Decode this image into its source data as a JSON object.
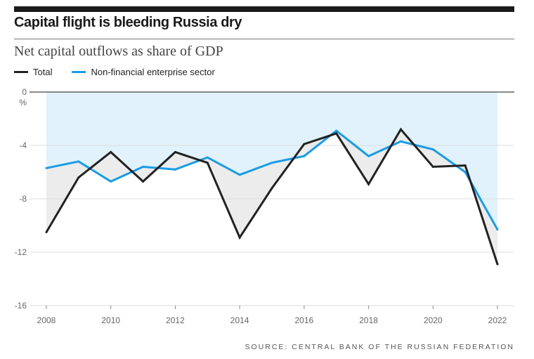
{
  "chart_data": {
    "type": "line",
    "title": "Capital flight is bleeding Russia dry",
    "subtitle": "Net capital outflows as share of GDP",
    "ylabel": "%",
    "x": [
      2008,
      2009,
      2010,
      2011,
      2012,
      2013,
      2014,
      2015,
      2016,
      2017,
      2018,
      2019,
      2020,
      2021,
      2022
    ],
    "xticks": [
      "2008",
      "2010",
      "2012",
      "2014",
      "2016",
      "2018",
      "2020",
      "2022"
    ],
    "yticks": [
      "0",
      "-4",
      "-8",
      "-12",
      "-16"
    ],
    "ylim": [
      -16,
      0
    ],
    "grid": true,
    "legend_position": "top-left",
    "series": [
      {
        "name": "Total",
        "color": "#222222",
        "values": [
          -10.5,
          -6.4,
          -4.5,
          -6.7,
          -4.5,
          -5.3,
          -10.9,
          -7.2,
          -3.9,
          -3.1,
          -6.9,
          -2.8,
          -5.6,
          -5.5,
          -12.9
        ]
      },
      {
        "name": "Non-financial enterprise sector",
        "color": "#1a9be6",
        "values": [
          -5.7,
          -5.2,
          -6.7,
          -5.6,
          -5.8,
          -4.9,
          -6.2,
          -5.3,
          -4.8,
          -2.9,
          -4.8,
          -3.7,
          -4.3,
          -6.0,
          -10.3
        ]
      }
    ],
    "fill_colors": {
      "above_series_2": "#e1f2fc",
      "between_series": "#ececec"
    },
    "source": "SOURCE: CENTRAL BANK OF THE RUSSIAN FEDERATION"
  }
}
